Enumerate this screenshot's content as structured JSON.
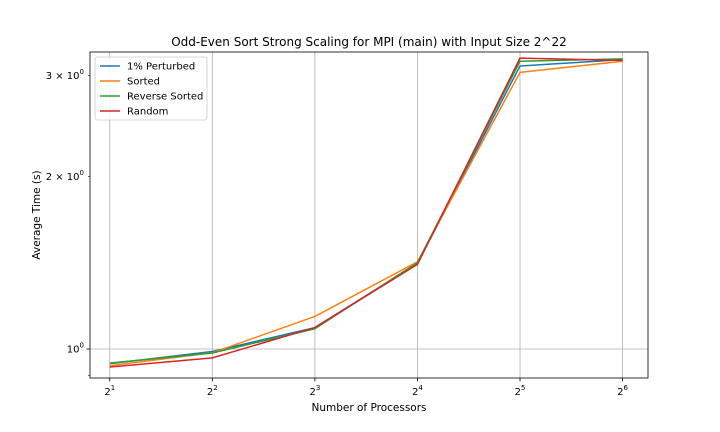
{
  "chart_data": {
    "type": "line",
    "title": "Odd-Even Sort Strong Scaling for MPI (main) with Input Size 2^22",
    "xlabel": "Number of Processors",
    "ylabel": "Average Time (s)",
    "x_scale": "log2",
    "y_scale": "log",
    "x": [
      2,
      4,
      8,
      16,
      32,
      64
    ],
    "x_tick_labels": [
      {
        "base": "2",
        "exp": "1"
      },
      {
        "base": "2",
        "exp": "2"
      },
      {
        "base": "2",
        "exp": "3"
      },
      {
        "base": "2",
        "exp": "4"
      },
      {
        "base": "2",
        "exp": "5"
      },
      {
        "base": "2",
        "exp": "6"
      }
    ],
    "y_major_ticks": [
      {
        "value": 1,
        "label": "10",
        "exp": "0"
      }
    ],
    "y_minor_ticks": [
      {
        "value": 2,
        "label": "2 × 10",
        "exp": "0"
      },
      {
        "value": 3,
        "label": "3 × 10",
        "exp": "0"
      }
    ],
    "xlim": [
      1.75,
      76
    ],
    "ylim": [
      0.89,
      3.3
    ],
    "grid": true,
    "legend_position": "top-left",
    "series": [
      {
        "name": "1% Perturbed",
        "color": "#1f77b4",
        "values": [
          0.943,
          0.99,
          1.09,
          1.41,
          3.12,
          3.2
        ]
      },
      {
        "name": "Sorted",
        "color": "#ff7f0e",
        "values": [
          0.935,
          0.985,
          1.14,
          1.42,
          3.04,
          3.18
        ]
      },
      {
        "name": "Reverse Sorted",
        "color": "#2ca02c",
        "values": [
          0.945,
          0.984,
          1.085,
          1.415,
          3.18,
          3.21
        ]
      },
      {
        "name": "Random",
        "color": "#d62728",
        "values": [
          0.93,
          0.965,
          1.09,
          1.405,
          3.22,
          3.19
        ]
      }
    ]
  }
}
